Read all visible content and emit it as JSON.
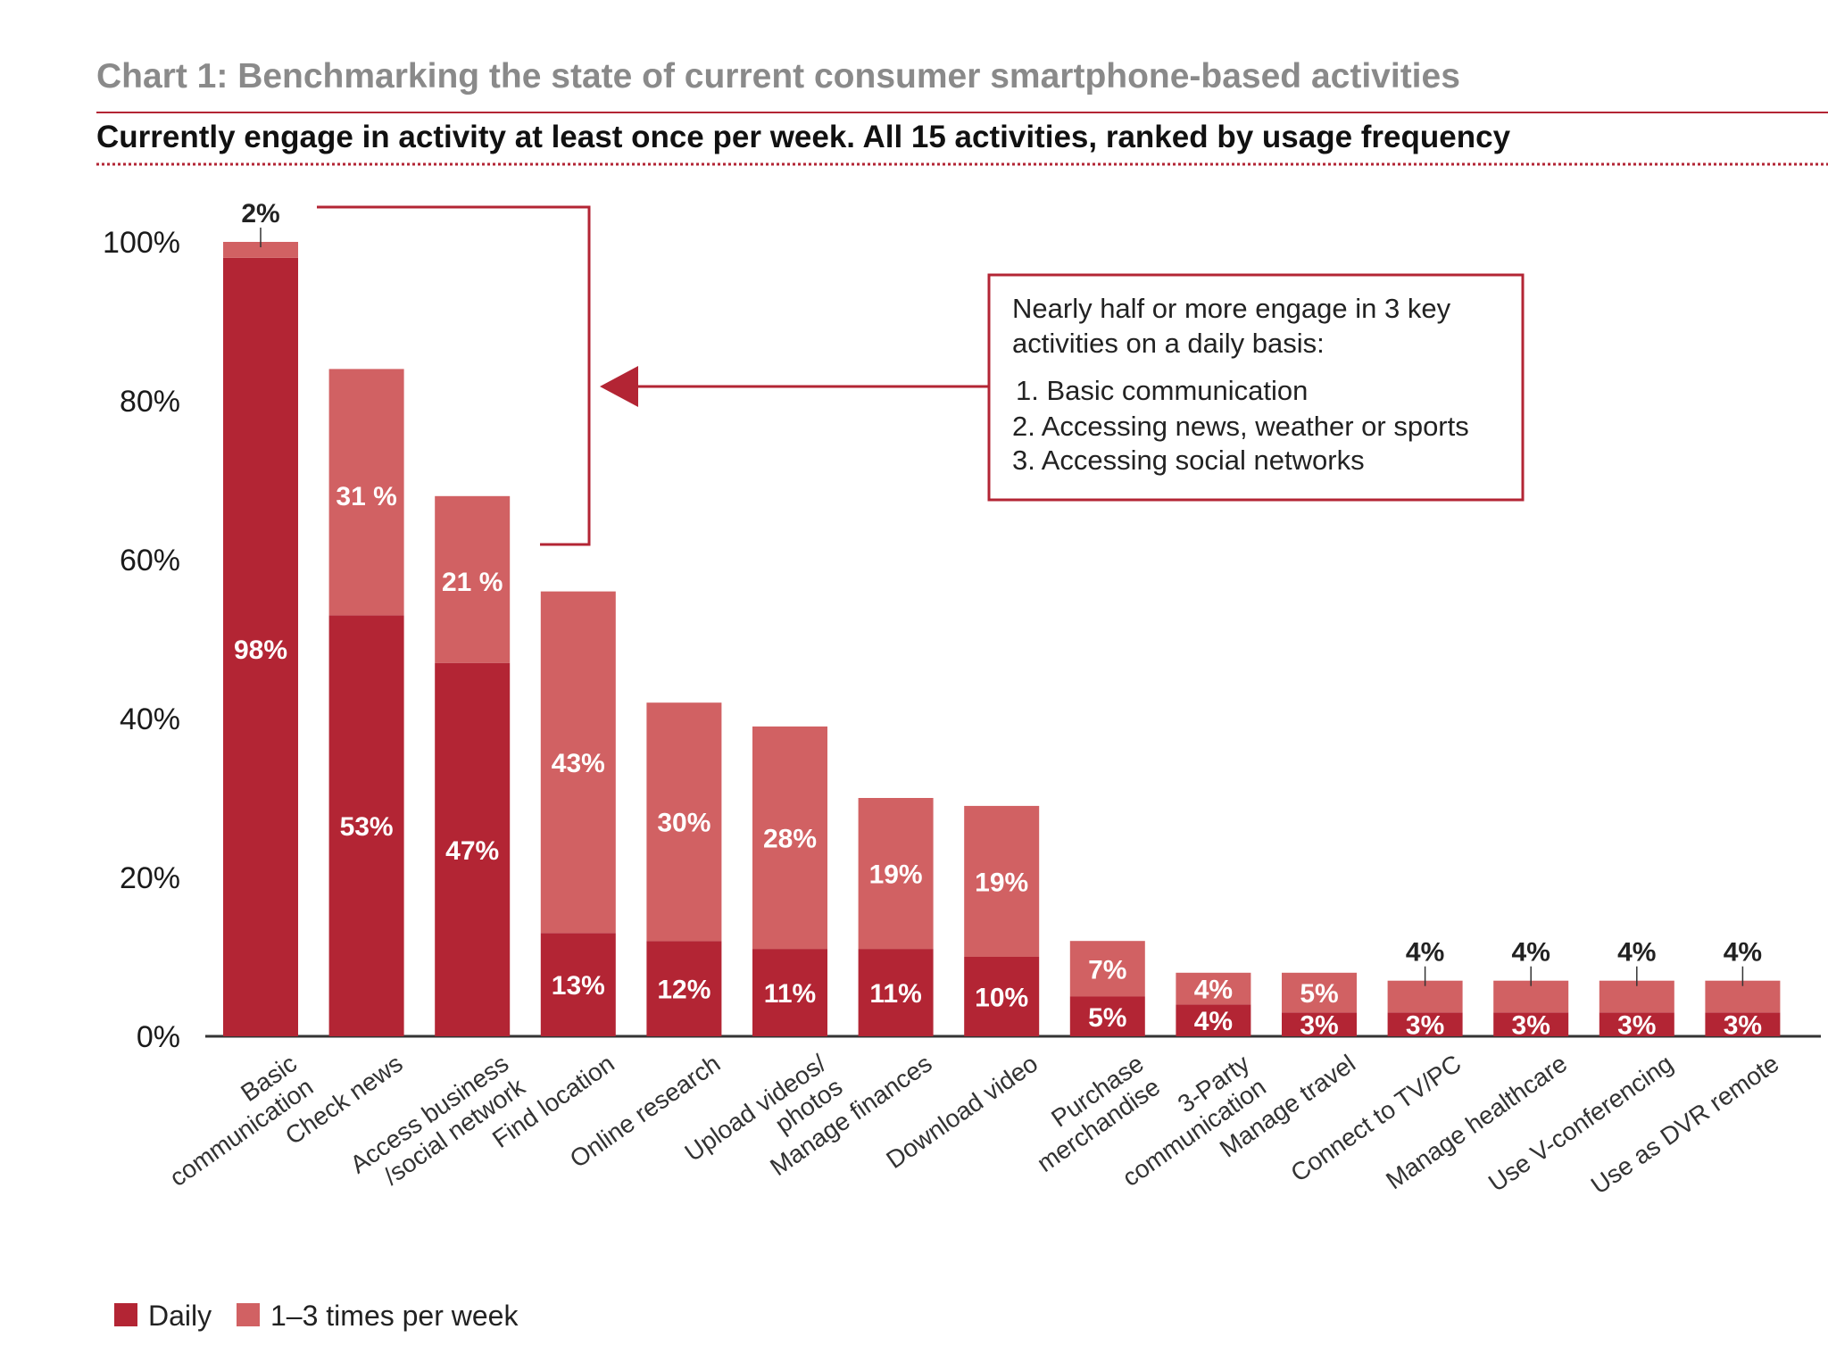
{
  "colors": {
    "daily": "#b32534",
    "weekly": "#d16163",
    "accent_line": "#b32534",
    "title_gray": "#8a8a8a"
  },
  "chart_data": {
    "type": "bar",
    "stacked": true,
    "title": "Chart 1: Benchmarking the state of current consumer smartphone-based activities",
    "subtitle": "Currently engage in activity at least once per week. All 15 activities, ranked by usage frequency",
    "xlabel": "",
    "ylabel": "",
    "ylim": [
      0,
      100
    ],
    "yticks": [
      "0%",
      "20%",
      "40%",
      "60%",
      "80%",
      "100%"
    ],
    "categories": [
      "Basic communication",
      "Check news",
      "Access business /social network",
      "Find location",
      "Online research",
      "Upload videos/ photos",
      "Manage finances",
      "Download video",
      "Purchase merchandise",
      "3-Party communication",
      "Manage travel",
      "Connect to TV/PC",
      "Manage healthcare",
      "Use V-conferencing",
      "Use as DVR remote"
    ],
    "category_lines": [
      [
        "Basic",
        "communication"
      ],
      [
        "Check news"
      ],
      [
        "Access business",
        "/social network"
      ],
      [
        "Find location"
      ],
      [
        "Online research"
      ],
      [
        "Upload videos/",
        "photos"
      ],
      [
        "Manage finances"
      ],
      [
        "Download video"
      ],
      [
        "Purchase",
        "merchandise"
      ],
      [
        "3-Party",
        "communication"
      ],
      [
        "Manage travel"
      ],
      [
        "Connect to TV/PC"
      ],
      [
        "Manage healthcare"
      ],
      [
        "Use V-conferencing"
      ],
      [
        "Use as DVR remote"
      ]
    ],
    "series": [
      {
        "name": "Daily",
        "values": [
          98,
          53,
          47,
          13,
          12,
          11,
          11,
          10,
          5,
          4,
          3,
          3,
          3,
          3,
          3
        ],
        "labels": [
          "98%",
          "53%",
          "47%",
          "13%",
          "12%",
          "11%",
          "11%",
          "10%",
          "5%",
          "4%",
          "3%",
          "3%",
          "3%",
          "3%",
          "3%"
        ]
      },
      {
        "name": "1–3 times per week",
        "values": [
          2,
          31,
          21,
          43,
          30,
          28,
          19,
          19,
          7,
          4,
          5,
          4,
          4,
          4,
          4
        ],
        "labels": [
          "2%",
          "31 %",
          "21 %",
          "43%",
          "30%",
          "28%",
          "19%",
          "19%",
          "7%",
          "4%",
          "5%",
          "4%",
          "4%",
          "4%",
          "4%"
        ]
      }
    ],
    "annotation": {
      "intro": [
        "Nearly half or more engage in 3 key",
        "activities on a daily basis:"
      ],
      "items": [
        "1. Basic communication",
        "2. Accessing news, weather or sports",
        "3. Accessing social networks"
      ]
    },
    "legend": {
      "placement": "bottom-left",
      "items": [
        "Daily",
        "1–3 times per week"
      ]
    }
  }
}
